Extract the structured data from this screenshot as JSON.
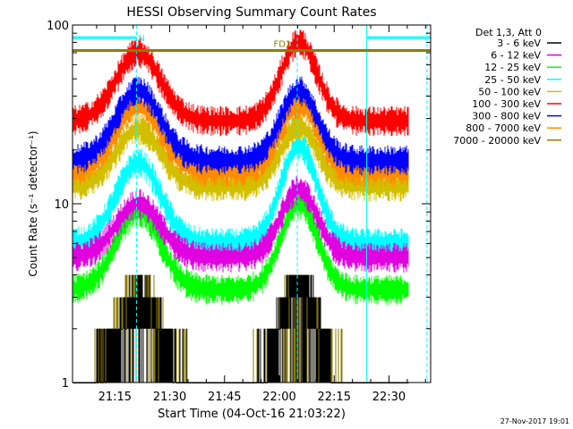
{
  "chart_data": {
    "type": "line",
    "title": "HESSI Observing Summary Count Rates",
    "xlabel": "Start Time (04-Oct-16 21:03:22)",
    "ylabel": "Count Rate (s⁻¹ detector⁻¹)",
    "y_scale": "log",
    "ylim": [
      1,
      100
    ],
    "xlim_minutes": [
      0,
      98
    ],
    "x_ticks": [
      {
        "label": "21:15",
        "minute": 11.6
      },
      {
        "label": "21:30",
        "minute": 26.6
      },
      {
        "label": "21:45",
        "minute": 41.6
      },
      {
        "label": "22:00",
        "minute": 56.6
      },
      {
        "label": "22:15",
        "minute": 71.6
      },
      {
        "label": "22:30",
        "minute": 86.6
      }
    ],
    "y_ticks": [
      {
        "label": "1",
        "value": 1
      },
      {
        "label": "10",
        "value": 10
      },
      {
        "label": "100",
        "value": 100
      }
    ],
    "legend_title": "Det 1,3, Att 0",
    "legend_position": "right",
    "series": [
      {
        "name": "3 - 6 keV",
        "color": "#000000",
        "min": 1.0,
        "max": 4.5,
        "peak1": 2.9,
        "peak2": 3.9,
        "quantized": true
      },
      {
        "name": "6 - 12 keV",
        "color": "#e000e0",
        "min": 5.0,
        "max": 14,
        "peak1": 10,
        "peak2": 12,
        "quantized": false
      },
      {
        "name": "12 - 25 keV",
        "color": "#00ff00",
        "min": 3.3,
        "max": 11,
        "peak1": 9,
        "peak2": 10,
        "quantized": false
      },
      {
        "name": "25 - 50 keV",
        "color": "#00ffff",
        "min": 6.0,
        "max": 23,
        "peak1": 17,
        "peak2": 21,
        "quantized": false
      },
      {
        "name": "50 - 100 keV",
        "color": "#d2c000",
        "min": 12.5,
        "max": 29,
        "peak1": 26,
        "peak2": 27,
        "quantized": false
      },
      {
        "name": "100 - 300 keV",
        "color": "#ff0000",
        "min": 29,
        "max": 82,
        "peak1": 70,
        "peak2": 80,
        "quantized": false
      },
      {
        "name": "300 - 800 keV",
        "color": "#0000ff",
        "min": 17.5,
        "max": 47,
        "peak1": 43,
        "peak2": 43,
        "quantized": false
      },
      {
        "name": "800 - 7000 keV",
        "color": "#ff8c00",
        "min": 15,
        "max": 37,
        "peak1": 35,
        "peak2": 36,
        "quantized": false
      },
      {
        "name": "7000 - 20000 keV",
        "color": "#8b7d00",
        "min": 1.0,
        "max": 4.5,
        "peak1": 3.5,
        "peak2": 4.0,
        "quantized": true
      }
    ],
    "peak_minutes": [
      18.0,
      62.0
    ],
    "bars": [
      {
        "label": "N",
        "color": "#00ffff",
        "start_minute": 0,
        "end_minute": 17.5,
        "value": 85
      },
      {
        "label": "FD1",
        "color": "#8b7d00",
        "start_minute": 0,
        "end_minute": 98,
        "value": 72
      },
      {
        "label": "",
        "color": "#00ffff",
        "start_minute": 80.5,
        "end_minute": 98,
        "value": 85
      }
    ],
    "markers": [
      {
        "color": "#00ffff",
        "minute": 17.5
      },
      {
        "color": "#00ffff",
        "minute": 61.5
      },
      {
        "color": "#00ffff",
        "minute": 80.5
      },
      {
        "color": "#00ffff",
        "minute": 97.0
      }
    ]
  },
  "footer": {
    "timestamp": "27-Nov-2017 19:01"
  }
}
